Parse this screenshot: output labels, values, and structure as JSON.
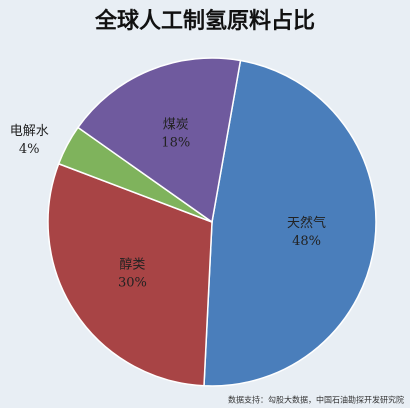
{
  "chart_data": {
    "type": "pie",
    "title": "全球人工制氢原料占比",
    "categories": [
      "天然气",
      "醇类",
      "电解水",
      "煤炭"
    ],
    "values": [
      48,
      30,
      4,
      18
    ],
    "value_labels": [
      "48%",
      "30%",
      "4%",
      "18%"
    ],
    "colors": [
      "#4a7ebb",
      "#a84445",
      "#7fb35c",
      "#6f5a9e"
    ],
    "source": "数据支持：勾股大数据，中国石油勘探开发研究院"
  }
}
